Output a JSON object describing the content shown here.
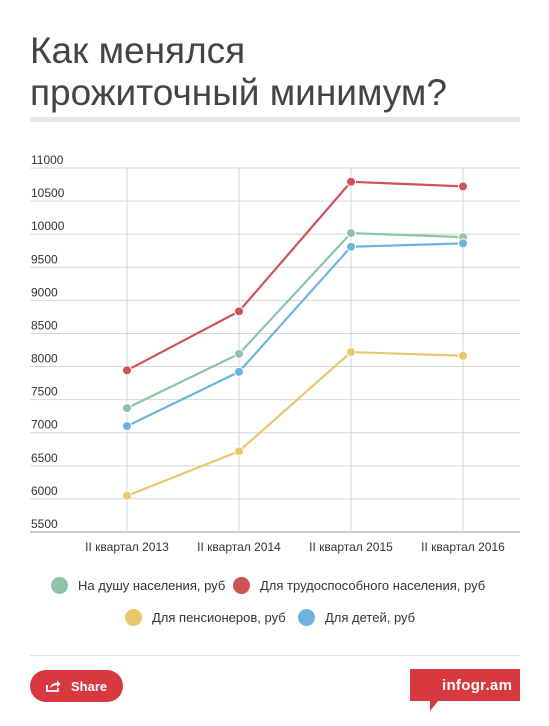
{
  "title": {
    "line1": "Как менялся",
    "line2": "прожиточный минимум?"
  },
  "chart_data": {
    "type": "line",
    "title": "Как менялся прожиточный минимум?",
    "categories": [
      "II квартал 2013",
      "II квартал 2014",
      "II квартал 2015",
      "II квартал 2016"
    ],
    "yticks": [
      5500,
      6000,
      6500,
      7000,
      7500,
      8000,
      8500,
      9000,
      9500,
      10000,
      10500,
      11000
    ],
    "ylim": [
      5500,
      11000
    ],
    "grid": true,
    "legend_position": "bottom",
    "series": [
      {
        "name": "На душу населения, руб",
        "color": "#8dc3a7",
        "values": [
          7372,
          8192,
          10017,
          9956
        ]
      },
      {
        "name": "Для трудоспособного населения, руб",
        "color": "#d05257",
        "values": [
          7943,
          8834,
          10792,
          10722
        ]
      },
      {
        "name": "Для пенсионеров, руб",
        "color": "#e9c86b",
        "values": [
          6047,
          6720,
          8219,
          8163
        ]
      },
      {
        "name": "Для детей, руб",
        "color": "#6cb4df",
        "values": [
          7100,
          7920,
          9810,
          9861
        ]
      }
    ]
  },
  "footer": {
    "share_label": "Share",
    "brand": "infogr.am"
  },
  "colors": {
    "share_button": "#d8383f",
    "brand": "#d8383f",
    "text": "#444444"
  }
}
